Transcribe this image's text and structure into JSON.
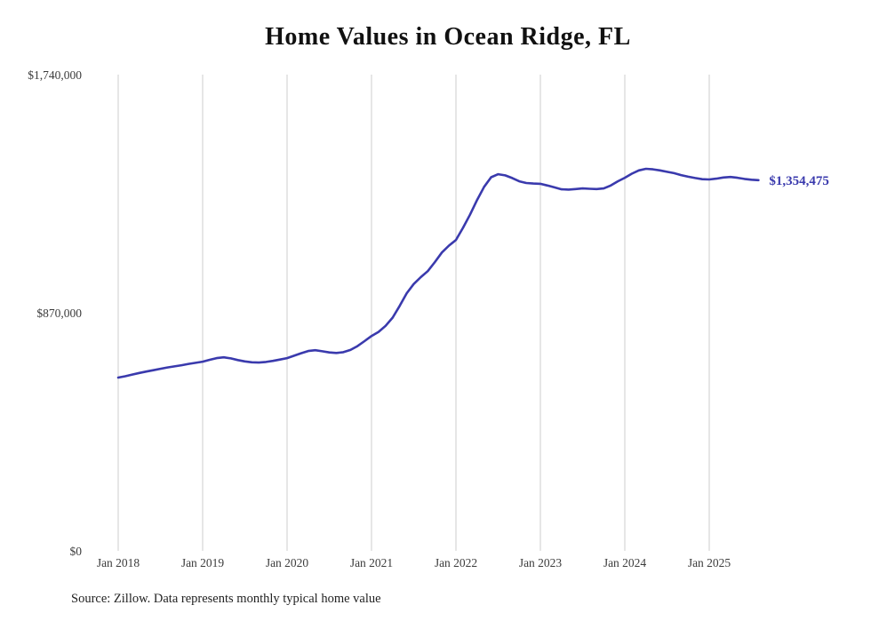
{
  "chart_data": {
    "type": "line",
    "title": "Home Values in Ocean Ridge, FL",
    "source_note": "Source: Zillow. Data represents monthly typical home value",
    "series_name": "Typical home value",
    "line_color": "#3a3aad",
    "grid_color": "#cccccc",
    "end_label": "$1,354,475",
    "latest_value": 1354475,
    "ylim": [
      0,
      1740000
    ],
    "y_ticks": [
      {
        "label": "$0",
        "value": 0
      },
      {
        "label": "$870,000",
        "value": 870000
      },
      {
        "label": "$1,740,000",
        "value": 1740000
      }
    ],
    "x_ticks": [
      {
        "label": "Jan 2018",
        "month_index": 0
      },
      {
        "label": "Jan 2019",
        "month_index": 12
      },
      {
        "label": "Jan 2020",
        "month_index": 24
      },
      {
        "label": "Jan 2021",
        "month_index": 36
      },
      {
        "label": "Jan 2022",
        "month_index": 48
      },
      {
        "label": "Jan 2023",
        "month_index": 60
      },
      {
        "label": "Jan 2024",
        "month_index": 72
      },
      {
        "label": "Jan 2025",
        "month_index": 84
      }
    ],
    "x_start": "Jan 2018",
    "x_end": "Aug 2025",
    "grid": "vertical-only",
    "legend": "none",
    "values": [
      633000,
      638000,
      644000,
      650000,
      655000,
      660000,
      665000,
      670000,
      674000,
      678000,
      683000,
      687000,
      691000,
      698000,
      704000,
      707000,
      703000,
      697000,
      692000,
      689000,
      688000,
      690000,
      694000,
      699000,
      704000,
      713000,
      722000,
      730000,
      733000,
      729000,
      725000,
      723000,
      726000,
      734000,
      748000,
      766000,
      785000,
      800000,
      822000,
      852000,
      895000,
      941000,
      975000,
      1000000,
      1022000,
      1055000,
      1090000,
      1115000,
      1136000,
      1180000,
      1228000,
      1282000,
      1330000,
      1365000,
      1376000,
      1372000,
      1362000,
      1350000,
      1344000,
      1342000,
      1341000,
      1335000,
      1328000,
      1321000,
      1320000,
      1322000,
      1324000,
      1323000,
      1322000,
      1324000,
      1335000,
      1350000,
      1363000,
      1378000,
      1390000,
      1396000,
      1394000,
      1390000,
      1385000,
      1380000,
      1373000,
      1367000,
      1362000,
      1358000,
      1357000,
      1360000,
      1364000,
      1366000,
      1363000,
      1359000,
      1356000,
      1354475
    ]
  }
}
